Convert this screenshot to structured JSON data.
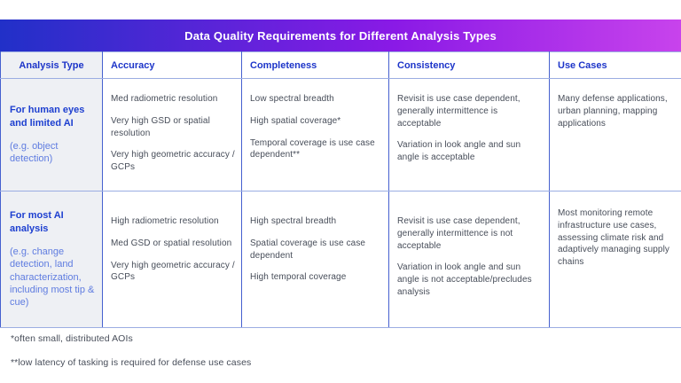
{
  "banner": {
    "title": "Data Quality Requirements for Different Analysis Types"
  },
  "table": {
    "columns": [
      "Analysis Type",
      "Accuracy",
      "Completeness",
      "Consistency",
      "Use Cases"
    ],
    "rows": [
      {
        "analysis_type": {
          "title": "For human eyes and limited AI",
          "subtitle": "(e.g. object detection)"
        },
        "accuracy": [
          "Med radiometric resolution",
          "Very high GSD or spatial resolution",
          "Very high geometric accuracy / GCPs"
        ],
        "completeness": [
          "Low spectral breadth",
          "High spatial coverage*",
          "Temporal coverage is use case dependent**"
        ],
        "consistency": [
          "Revisit is use case dependent, generally intermittence is acceptable",
          "Variation in look angle and sun angle is acceptable"
        ],
        "use_cases": [
          "Many defense applications, urban planning, mapping applications"
        ]
      },
      {
        "analysis_type": {
          "title": "For most AI analysis",
          "subtitle": "(e.g. change detection, land characterization, including most tip & cue)"
        },
        "accuracy": [
          "High radiometric resolution",
          "Med GSD or spatial resolution",
          "Very high geometric accuracy / GCPs"
        ],
        "completeness": [
          "High spectral breadth",
          "Spatial coverage is use case dependent",
          "High temporal coverage"
        ],
        "consistency": [
          "Revisit is use case dependent, generally intermittence is not acceptable",
          "Variation in look angle and sun angle is not acceptable/precludes analysis"
        ],
        "use_cases": [
          "Most monitoring remote infrastructure use cases, assessing climate risk and adaptively managing supply chains"
        ]
      }
    ]
  },
  "footnotes": [
    "*often small, distributed AOIs",
    "**low latency of tasking is required for defense use cases"
  ],
  "colors": {
    "banner_gradient_left": "#2130c8",
    "banner_gradient_mid": "#8a1ae6",
    "banner_gradient_right": "#c843ec",
    "header_text": "#1d35c9",
    "row_label": "#1d3fd0",
    "row_sublabel": "#5f7ce0",
    "body_text": "#474d59",
    "border_vertical": "#4560cf",
    "border_horizontal": "#9bade2",
    "label_col_bg": "#eef0f4",
    "banner_text": "#ffffff"
  }
}
